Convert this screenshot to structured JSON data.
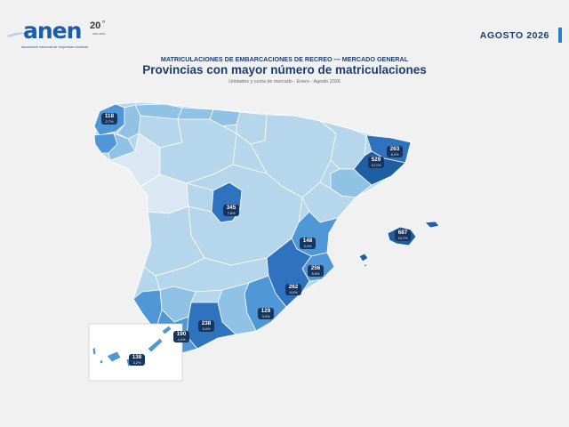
{
  "logo": {
    "word": "anen",
    "anniversary": "20",
    "years": "2006·2026",
    "subtitle": "asociación nacional de empresas náuticas"
  },
  "date": "AGOSTO 2026",
  "header": {
    "kicker": "MATRICULACIONES DE EMBARCACIONES DE RECREO — MERCADO GENERAL",
    "title": "Provincias con mayor número de matriculaciones",
    "subtitle": "Unidades y cuota de mercado - Enero - Agosto 2026"
  },
  "colors": {
    "very_light": "#dbe8f3",
    "light": "#b6d6ec",
    "mid": "#8fc2e5",
    "strong": "#4f97d6",
    "darker": "#2f73be",
    "darkest": "#1e5fa3",
    "badge": "#17365f"
  },
  "map": {
    "labels": [
      {
        "id": "a-coruna",
        "units": "118",
        "share": "2,7%"
      },
      {
        "id": "madrid",
        "units": "345",
        "share": "7,8%"
      },
      {
        "id": "girona",
        "units": "263",
        "share": "6,0%"
      },
      {
        "id": "barcelona",
        "units": "529",
        "share": "12,1%"
      },
      {
        "id": "baleares",
        "units": "687",
        "share": "15,7%"
      },
      {
        "id": "valencia",
        "units": "148",
        "share": "3,4%"
      },
      {
        "id": "alicante",
        "units": "256",
        "share": "5,8%"
      },
      {
        "id": "murcia",
        "units": "262",
        "share": "6,0%"
      },
      {
        "id": "almeria",
        "units": "129",
        "share": "3,0%"
      },
      {
        "id": "malaga",
        "units": "238",
        "share": "5,4%"
      },
      {
        "id": "cadiz",
        "units": "190",
        "share": "4,4%"
      },
      {
        "id": "canarias",
        "units": "138",
        "share": "3,2%"
      }
    ]
  }
}
